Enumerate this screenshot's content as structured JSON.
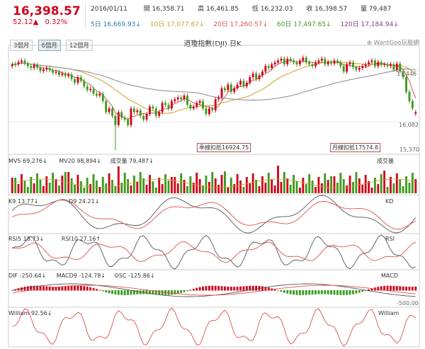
{
  "header": {
    "last_price": "16,398.57",
    "change": "52.12▲",
    "change_pct": "0.32%",
    "date": "2016/01/11",
    "open": "開 16,358.71",
    "high": "高 16,461.85",
    "low": "低 16,232.03",
    "close": "收 16,398.57",
    "volume": "量 79,487",
    "ma5": "5日 16,669.93↓",
    "ma10": "10日 17,077.67↓",
    "ma20": "20日 17,260.57↓",
    "ma60": "60日 17,497.65↓",
    "ma120": "120日 17,184.94↓"
  },
  "tabs": [
    "3個月",
    "6個月",
    "12個月"
  ],
  "active_tab": "6個月",
  "chart_title": "道瓊指數(DJI) 日K",
  "brand": "WantGoo玩股網",
  "colors": {
    "up": "#d0021b",
    "down": "#3c9a1e",
    "ma_slow": "#888888",
    "ma_mid": "#c9a227",
    "ma_fast": "#d9534f",
    "accent": "#d0021b"
  },
  "chart_data": {
    "type": "candlestick",
    "title": "道瓊指數(DJI) 日K",
    "price_axis": {
      "ticks": [
        "17,446",
        "16,082",
        "15,370"
      ],
      "max": 18100,
      "min": 15370
    },
    "annotations": [
      "季線扣抵16924.75",
      "月線扣抵17574.8"
    ],
    "closes": [
      17700,
      17680,
      17760,
      17800,
      17720,
      17650,
      17600,
      17680,
      17610,
      17520,
      17560,
      17600,
      17540,
      17470,
      17500,
      17410,
      17450,
      17380,
      17420,
      17300,
      17200,
      17350,
      17250,
      17100,
      17000,
      17030,
      16900,
      16850,
      16900,
      16700,
      16400,
      16500,
      16300,
      16050,
      16400,
      16250,
      16200,
      16050,
      16500,
      16400,
      16450,
      16300,
      16200,
      16350,
      16550,
      16500,
      16300,
      16400,
      16650,
      16600,
      16500,
      16700,
      16750,
      16800,
      16750,
      16850,
      16600,
      16500,
      16550,
      16650,
      16700,
      16500,
      16350,
      16500,
      16450,
      16750,
      16800,
      17050,
      17000,
      17150,
      16950,
      17050,
      17150,
      17250,
      17100,
      17200,
      17350,
      17450,
      17300,
      17400,
      17500,
      17650,
      17600,
      17700,
      17750,
      17800,
      17850,
      17700,
      17850,
      17800,
      17750,
      17700,
      17800,
      17880,
      17750,
      17700,
      17650,
      17750,
      17800,
      17850,
      17700,
      17760,
      17720,
      17800,
      17750,
      17650,
      17500,
      17700,
      17750,
      17620,
      17550,
      17600,
      17650,
      17700,
      17760,
      17800,
      17650,
      17760,
      17680,
      17700,
      17650,
      17700,
      17550,
      17720,
      17500,
      17350,
      16950,
      16700,
      16500,
      16400
    ],
    "opens": [
      17650,
      17720,
      17700,
      17760,
      17800,
      17720,
      17650,
      17600,
      17680,
      17610,
      17520,
      17560,
      17600,
      17540,
      17470,
      17500,
      17410,
      17450,
      17380,
      17420,
      17300,
      17200,
      17350,
      17250,
      17100,
      17000,
      17030,
      16900,
      16850,
      16900,
      16700,
      16400,
      16500,
      16300,
      16050,
      16400,
      16250,
      16200,
      16050,
      16500,
      16400,
      16450,
      16300,
      16200,
      16350,
      16550,
      16500,
      16300,
      16400,
      16650,
      16600,
      16500,
      16700,
      16750,
      16800,
      16750,
      16850,
      16600,
      16500,
      16550,
      16650,
      16700,
      16500,
      16350,
      16500,
      16450,
      16750,
      16800,
      17050,
      17000,
      17150,
      16950,
      17050,
      17150,
      17250,
      17100,
      17200,
      17350,
      17450,
      17300,
      17400,
      17500,
      17650,
      17600,
      17700,
      17750,
      17800,
      17850,
      17700,
      17850,
      17800,
      17750,
      17700,
      17800,
      17880,
      17750,
      17700,
      17650,
      17750,
      17800,
      17850,
      17700,
      17760,
      17720,
      17800,
      17750,
      17650,
      17500,
      17700,
      17750,
      17620,
      17550,
      17600,
      17650,
      17700,
      17760,
      17800,
      17650,
      17760,
      17680,
      17700,
      17650,
      17700,
      17550,
      17720,
      17500,
      17350,
      16950,
      16700,
      16358
    ],
    "lowest_marker": 15370,
    "indicators": {
      "volume": {
        "label_ma5": "MV5 69,276↓",
        "label_ma20": "MV20 98,894↓",
        "label_vol": "成交量 79,487↓",
        "right_label": "成交量"
      },
      "kd": {
        "label_k": "K9 13.77↓",
        "label_d": "D9 24.21↓",
        "right_label": "KD"
      },
      "rsi": {
        "label_5": "RSI5 18.73↓",
        "label_10": "RSI10 27.16↑",
        "right_label": "RSI"
      },
      "macd": {
        "label_dif": "DIF -250.64↓",
        "label_macd": "MACD9 -124.78↓",
        "label_osc": "OSC -125.86↓",
        "right_label": "MACD",
        "axis_tick": "-500.00"
      },
      "william": {
        "label": "William 92.56↓",
        "right_label": "William"
      }
    }
  }
}
